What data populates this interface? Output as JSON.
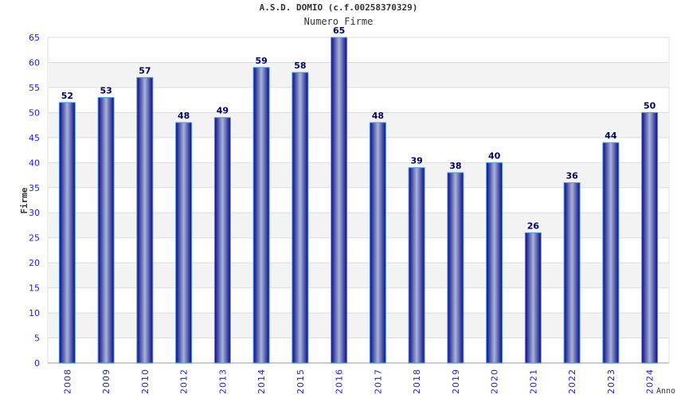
{
  "chart_data": {
    "type": "bar",
    "title": "A.S.D. DOMIO (c.f.00258370329)",
    "subtitle": "Numero Firme",
    "xlabel": "Anno",
    "ylabel": "Firme",
    "categories": [
      "2008",
      "2009",
      "2010",
      "2012",
      "2013",
      "2014",
      "2015",
      "2016",
      "2017",
      "2018",
      "2019",
      "2020",
      "2021",
      "2022",
      "2023",
      "2024"
    ],
    "values": [
      52,
      53,
      57,
      48,
      49,
      59,
      58,
      65,
      48,
      39,
      38,
      40,
      26,
      36,
      44,
      50
    ],
    "ylim": [
      0,
      65
    ],
    "yticks": [
      0,
      5,
      10,
      15,
      20,
      25,
      30,
      35,
      40,
      45,
      50,
      55,
      60,
      65
    ],
    "grid": true,
    "colors": {
      "bar_dark": "#0a0a80",
      "bar_light": "#a8b4dc",
      "bar_border": "#4a9cf0",
      "tick": "#1a1aff",
      "label": "#000066"
    }
  }
}
